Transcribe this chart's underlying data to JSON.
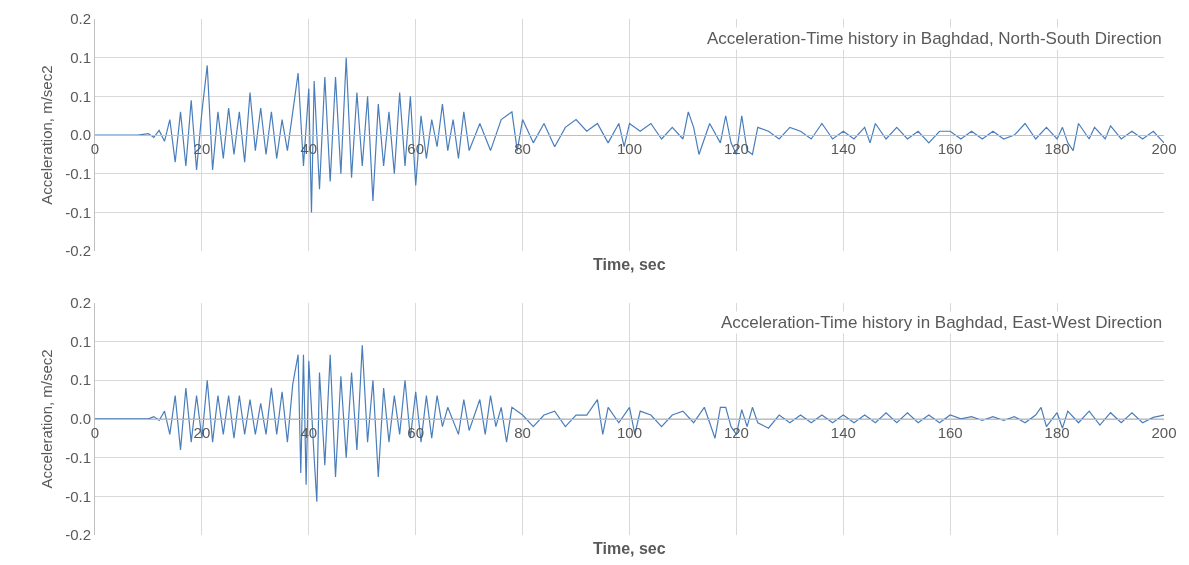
{
  "chart_data": [
    {
      "type": "line",
      "title": "Acceleration-Time history in Baghdad, North-South Direction",
      "xlabel": "Time, sec",
      "ylabel": "Acceleration, m/sec2",
      "xlim": [
        0,
        200
      ],
      "xticks": [
        0,
        20,
        40,
        60,
        80,
        100,
        120,
        140,
        160,
        180,
        200
      ],
      "ylim": [
        -0.15,
        0.15
      ],
      "yticks": [
        {
          "value": -0.15,
          "label": "-0.2"
        },
        {
          "value": -0.1,
          "label": "-0.1"
        },
        {
          "value": -0.05,
          "label": "-0.1"
        },
        {
          "value": 0,
          "label": "0.0"
        },
        {
          "value": 0.05,
          "label": "0.1"
        },
        {
          "value": 0.1,
          "label": "0.1"
        },
        {
          "value": 0.15,
          "label": "0.2"
        }
      ],
      "grid": true,
      "series": [
        {
          "color": "#4a7ebb",
          "x": [
            0,
            8,
            10,
            11,
            12,
            13,
            14,
            15,
            16,
            17,
            18,
            19,
            20,
            21,
            22,
            23,
            24,
            25,
            26,
            27,
            28,
            29,
            30,
            31,
            32,
            33,
            34,
            35,
            36,
            37,
            38,
            39,
            40,
            40.5,
            41,
            42,
            43,
            44,
            45,
            46,
            47,
            48,
            49,
            50,
            51,
            52,
            53,
            54,
            55,
            56,
            57,
            58,
            59,
            60,
            61,
            62,
            63,
            64,
            65,
            66,
            67,
            68,
            69,
            70,
            72,
            74,
            76,
            78,
            79,
            80,
            82,
            84,
            86,
            88,
            90,
            92,
            94,
            96,
            98,
            99,
            100,
            102,
            104,
            106,
            108,
            110,
            111,
            112,
            113,
            115,
            117,
            118,
            119,
            120,
            121,
            122,
            123,
            124,
            126,
            128,
            130,
            132,
            134,
            136,
            138,
            140,
            142,
            144,
            145,
            146,
            148,
            150,
            152,
            154,
            156,
            158,
            160,
            162,
            164,
            166,
            168,
            170,
            172,
            174,
            176,
            178,
            180,
            181,
            182,
            183,
            184,
            186,
            187,
            189,
            190,
            192,
            194,
            196,
            198,
            200
          ],
          "values": [
            0,
            0,
            0.002,
            -0.003,
            0.006,
            -0.008,
            0.02,
            -0.035,
            0.03,
            -0.04,
            0.045,
            -0.045,
            0.03,
            0.09,
            -0.045,
            0.03,
            -0.03,
            0.035,
            -0.025,
            0.03,
            -0.035,
            0.055,
            -0.02,
            0.035,
            -0.025,
            0.03,
            -0.03,
            0.02,
            -0.02,
            0.03,
            0.08,
            -0.04,
            0.06,
            -0.1,
            0.07,
            -0.07,
            0.075,
            -0.06,
            0.075,
            -0.05,
            0.1,
            -0.055,
            0.055,
            -0.04,
            0.05,
            -0.085,
            0.04,
            -0.04,
            0.03,
            -0.05,
            0.055,
            -0.04,
            0.05,
            -0.065,
            0.025,
            -0.03,
            0.02,
            -0.015,
            0.04,
            -0.02,
            0.02,
            -0.03,
            0.03,
            -0.02,
            0.015,
            -0.02,
            0.02,
            0.03,
            -0.02,
            0.02,
            -0.01,
            0.015,
            -0.015,
            0.01,
            0.02,
            0.005,
            0.015,
            -0.01,
            0.015,
            -0.015,
            0.015,
            0.005,
            0.015,
            -0.005,
            0.01,
            -0.005,
            0.03,
            0.01,
            -0.025,
            0.015,
            -0.01,
            0.025,
            -0.01,
            -0.025,
            0.025,
            -0.02,
            -0.025,
            0.01,
            0.005,
            -0.005,
            0.01,
            0.005,
            -0.005,
            0.015,
            -0.005,
            0.005,
            -0.005,
            0.01,
            -0.01,
            0.015,
            -0.005,
            0.01,
            -0.005,
            0.005,
            -0.01,
            0.005,
            0.005,
            -0.005,
            0.005,
            -0.005,
            0.005,
            -0.005,
            0,
            0.015,
            -0.005,
            0.01,
            -0.005,
            0.01,
            -0.01,
            -0.02,
            0.015,
            -0.005,
            0.01,
            -0.005,
            0.012,
            -0.005,
            0.005,
            -0.005,
            0.005,
            -0.01
          ]
        }
      ]
    },
    {
      "type": "line",
      "title": "Acceleration-Time history in Baghdad, East-West Direction",
      "xlabel": "Time, sec",
      "ylabel": "Acceleration, m/sec2",
      "xlim": [
        0,
        200
      ],
      "xticks": [
        0,
        20,
        40,
        60,
        80,
        100,
        120,
        140,
        160,
        180,
        200
      ],
      "ylim": [
        -0.15,
        0.15
      ],
      "yticks": [
        {
          "value": -0.15,
          "label": "-0.2"
        },
        {
          "value": -0.1,
          "label": "-0.1"
        },
        {
          "value": -0.05,
          "label": "-0.1"
        },
        {
          "value": 0,
          "label": "0.0"
        },
        {
          "value": 0.05,
          "label": "0.1"
        },
        {
          "value": 0.1,
          "label": "0.1"
        },
        {
          "value": 0.15,
          "label": "0.2"
        }
      ],
      "grid": true,
      "series": [
        {
          "color": "#4a7ebb",
          "x": [
            0,
            10,
            11,
            12,
            13,
            14,
            15,
            16,
            17,
            18,
            19,
            20,
            21,
            22,
            23,
            24,
            25,
            26,
            27,
            28,
            29,
            30,
            31,
            32,
            33,
            34,
            35,
            36,
            37,
            38,
            38.5,
            39,
            39.5,
            40,
            41,
            41.5,
            42,
            43,
            44,
            45,
            46,
            47,
            48,
            49,
            50,
            51,
            52,
            53,
            54,
            55,
            56,
            57,
            58,
            59,
            60,
            61,
            62,
            63,
            64,
            65,
            66,
            68,
            69,
            70,
            72,
            73,
            74,
            75,
            76,
            77,
            78,
            80,
            82,
            84,
            86,
            88,
            90,
            92,
            94,
            95,
            96,
            98,
            100,
            101,
            102,
            104,
            106,
            108,
            110,
            112,
            114,
            115,
            116,
            117,
            118,
            119,
            120,
            121,
            122,
            123,
            124,
            126,
            128,
            130,
            132,
            134,
            136,
            138,
            140,
            142,
            144,
            146,
            148,
            150,
            152,
            154,
            156,
            158,
            160,
            162,
            164,
            166,
            168,
            170,
            172,
            174,
            176,
            177,
            178,
            180,
            181,
            182,
            184,
            186,
            188,
            190,
            192,
            194,
            196,
            198,
            200
          ],
          "values": [
            0,
            0,
            0.003,
            -0.002,
            0.01,
            -0.02,
            0.03,
            -0.04,
            0.04,
            -0.03,
            0.03,
            -0.025,
            0.05,
            -0.03,
            0.03,
            -0.02,
            0.03,
            -0.025,
            0.03,
            -0.02,
            0.025,
            -0.02,
            0.02,
            -0.02,
            0.04,
            -0.02,
            0.035,
            -0.03,
            0.045,
            0.083,
            -0.07,
            0.083,
            -0.085,
            0.075,
            -0.05,
            -0.107,
            0.06,
            -0.06,
            0.083,
            -0.075,
            0.055,
            -0.05,
            0.06,
            -0.04,
            0.095,
            -0.03,
            0.05,
            -0.075,
            0.04,
            -0.03,
            0.03,
            -0.02,
            0.05,
            -0.025,
            0.035,
            -0.03,
            0.03,
            -0.025,
            0.03,
            -0.01,
            0.015,
            -0.02,
            0.025,
            -0.015,
            0.025,
            -0.02,
            0.03,
            -0.01,
            0.015,
            -0.03,
            0.015,
            0.005,
            -0.01,
            0.005,
            0.01,
            -0.01,
            0.005,
            0.005,
            0.025,
            -0.02,
            0.015,
            -0.005,
            0.015,
            -0.02,
            0.01,
            0.005,
            -0.01,
            0.005,
            0.01,
            -0.005,
            0.015,
            -0.005,
            -0.025,
            0.015,
            0.015,
            -0.01,
            -0.02,
            0.012,
            -0.01,
            0.015,
            -0.005,
            -0.012,
            0.005,
            -0.005,
            0.005,
            -0.005,
            0.005,
            -0.005,
            0.005,
            -0.005,
            0.005,
            -0.005,
            0.008,
            -0.005,
            0.008,
            -0.005,
            0.005,
            -0.005,
            0.005,
            0,
            0.003,
            -0.002,
            0.003,
            -0.002,
            0.003,
            -0.005,
            0.005,
            0.015,
            -0.01,
            0.008,
            -0.012,
            0.01,
            -0.005,
            0.01,
            -0.008,
            0.008,
            -0.005,
            0.008,
            -0.005,
            0.002,
            0.005
          ]
        }
      ]
    }
  ]
}
